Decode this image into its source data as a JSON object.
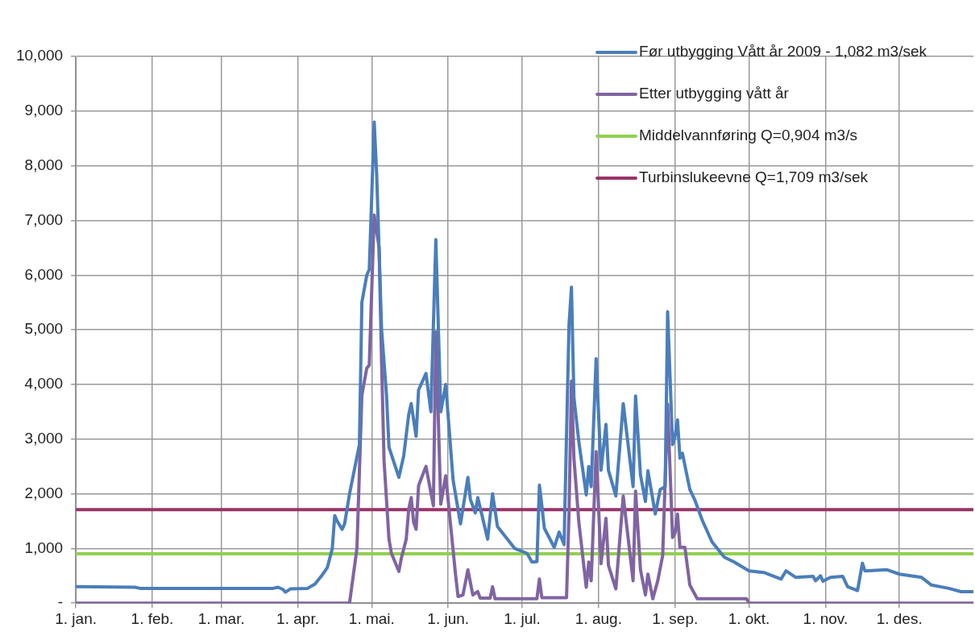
{
  "chart_data": {
    "type": "line",
    "legend": "top right",
    "grid": true,
    "marker": "none",
    "line_style": "solid",
    "xlim": [
      "2009-01-01",
      "2009-12-31"
    ],
    "xticks": [
      {
        "value": "2009-01-01",
        "label": "1. jan."
      },
      {
        "value": "2009-02-01",
        "label": "1. feb."
      },
      {
        "value": "2009-03-01",
        "label": "1. mar."
      },
      {
        "value": "2009-04-01",
        "label": "1. apr."
      },
      {
        "value": "2009-05-01",
        "label": "1. mai."
      },
      {
        "value": "2009-06-01",
        "label": "1. jun."
      },
      {
        "value": "2009-07-01",
        "label": "1. jul."
      },
      {
        "value": "2009-08-01",
        "label": "1. aug."
      },
      {
        "value": "2009-09-01",
        "label": "1. sep."
      },
      {
        "value": "2009-10-01",
        "label": "1. okt."
      },
      {
        "value": "2009-11-01",
        "label": "1. nov."
      },
      {
        "value": "2009-12-01",
        "label": "1. des."
      }
    ],
    "ylim": [
      0,
      10000
    ],
    "yticks": [
      {
        "value": 0,
        "label": "-"
      },
      {
        "value": 1000,
        "label": "1,000"
      },
      {
        "value": 2000,
        "label": "2,000"
      },
      {
        "value": 3000,
        "label": "3,000"
      },
      {
        "value": 4000,
        "label": "4,000"
      },
      {
        "value": 5000,
        "label": "5,000"
      },
      {
        "value": 6000,
        "label": "6,000"
      },
      {
        "value": 7000,
        "label": "7,000"
      },
      {
        "value": 8000,
        "label": "8,000"
      },
      {
        "value": 9000,
        "label": "9,000"
      },
      {
        "value": 10000,
        "label": "10,000"
      }
    ],
    "series": [
      {
        "name": "Før utbygging Vått år 2009 - 1,082 m3/sek",
        "color": "#4a7ebb",
        "x": [
          "2009-01-01",
          "2009-01-25",
          "2009-01-27",
          "2009-03-22",
          "2009-03-24",
          "2009-03-26",
          "2009-03-27",
          "2009-03-29",
          "2009-04-05",
          "2009-04-08",
          "2009-04-11",
          "2009-04-13",
          "2009-04-15",
          "2009-04-16",
          "2009-04-17",
          "2009-04-19",
          "2009-04-20",
          "2009-04-22",
          "2009-04-26",
          "2009-04-27",
          "2009-04-29",
          "2009-04-30",
          "2009-05-02",
          "2009-05-03",
          "2009-05-05",
          "2009-05-07",
          "2009-05-08",
          "2009-05-12",
          "2009-05-14",
          "2009-05-16",
          "2009-05-17",
          "2009-05-19",
          "2009-05-20",
          "2009-05-21",
          "2009-05-23",
          "2009-05-25",
          "2009-05-27",
          "2009-05-29",
          "2009-05-31",
          "2009-06-03",
          "2009-06-06",
          "2009-06-09",
          "2009-06-10",
          "2009-06-12",
          "2009-06-13",
          "2009-06-17",
          "2009-06-19",
          "2009-06-21",
          "2009-06-25",
          "2009-06-28",
          "2009-07-03",
          "2009-07-05",
          "2009-07-07",
          "2009-07-08",
          "2009-07-09",
          "2009-07-10",
          "2009-07-14",
          "2009-07-16",
          "2009-07-18",
          "2009-07-20",
          "2009-07-21",
          "2009-07-22",
          "2009-07-24",
          "2009-07-27",
          "2009-07-28",
          "2009-07-29",
          "2009-07-31",
          "2009-08-02",
          "2009-08-04",
          "2009-08-05",
          "2009-08-08",
          "2009-08-11",
          "2009-08-15",
          "2009-08-16",
          "2009-08-18",
          "2009-08-20",
          "2009-08-21",
          "2009-08-24",
          "2009-08-26",
          "2009-08-28",
          "2009-08-29",
          "2009-08-31",
          "2009-09-01",
          "2009-09-02",
          "2009-09-03",
          "2009-09-04",
          "2009-09-07",
          "2009-09-09",
          "2009-09-12",
          "2009-09-16",
          "2009-09-21",
          "2009-09-25",
          "2009-10-01",
          "2009-10-07",
          "2009-10-14",
          "2009-10-16",
          "2009-10-20",
          "2009-10-27",
          "2009-10-28",
          "2009-10-30",
          "2009-10-31",
          "2009-11-03",
          "2009-11-08",
          "2009-11-10",
          "2009-11-14",
          "2009-11-16",
          "2009-11-17",
          "2009-11-26",
          "2009-12-01",
          "2009-12-10",
          "2009-12-14",
          "2009-12-21",
          "2009-12-26",
          "2009-12-31"
        ],
        "values": [
          300,
          290,
          270,
          270,
          290,
          250,
          200,
          260,
          270,
          350,
          520,
          650,
          1000,
          1600,
          1500,
          1350,
          1450,
          2000,
          2900,
          5500,
          6000,
          6100,
          8800,
          7850,
          5000,
          3800,
          2850,
          2300,
          2700,
          3450,
          3650,
          3050,
          3900,
          4000,
          4200,
          3500,
          6650,
          3500,
          4000,
          2250,
          1450,
          2300,
          1900,
          1650,
          1930,
          1170,
          2000,
          1400,
          1170,
          1000,
          910,
          750,
          760,
          2160,
          1780,
          1370,
          1020,
          1300,
          1070,
          5080,
          5780,
          3760,
          2950,
          1980,
          2500,
          2130,
          4470,
          2430,
          3270,
          2430,
          1960,
          3650,
          2130,
          3790,
          2340,
          1860,
          2420,
          1630,
          2080,
          2130,
          5330,
          2900,
          3050,
          3350,
          2650,
          2740,
          2080,
          1890,
          1520,
          1120,
          840,
          750,
          590,
          560,
          440,
          590,
          470,
          490,
          410,
          500,
          400,
          470,
          490,
          300,
          230,
          730,
          590,
          610,
          530,
          470,
          330,
          270,
          210,
          210
        ]
      },
      {
        "name": "Etter utbygging vått år",
        "color": "#8064a2",
        "x": [
          "2009-01-01",
          "2009-04-22",
          "2009-04-25",
          "2009-04-27",
          "2009-04-29",
          "2009-04-30",
          "2009-05-02",
          "2009-05-04",
          "2009-05-05",
          "2009-05-06",
          "2009-05-08",
          "2009-05-09",
          "2009-05-12",
          "2009-05-13",
          "2009-05-15",
          "2009-05-16",
          "2009-05-17",
          "2009-05-18",
          "2009-05-19",
          "2009-05-20",
          "2009-05-21",
          "2009-05-23",
          "2009-05-26",
          "2009-05-27",
          "2009-05-29",
          "2009-05-31",
          "2009-06-02",
          "2009-06-04",
          "2009-06-05",
          "2009-06-07",
          "2009-06-09",
          "2009-06-11",
          "2009-06-13",
          "2009-06-14",
          "2009-06-18",
          "2009-06-19",
          "2009-06-20",
          "2009-07-07",
          "2009-07-08",
          "2009-07-09",
          "2009-07-19",
          "2009-07-20",
          "2009-07-21",
          "2009-07-22",
          "2009-07-24",
          "2009-07-27",
          "2009-07-28",
          "2009-07-29",
          "2009-07-31",
          "2009-08-02",
          "2009-08-04",
          "2009-08-05",
          "2009-08-08",
          "2009-08-11",
          "2009-08-15",
          "2009-08-16",
          "2009-08-18",
          "2009-08-20",
          "2009-08-21",
          "2009-08-23",
          "2009-08-25",
          "2009-08-27",
          "2009-08-29",
          "2009-08-31",
          "2009-09-01",
          "2009-09-02",
          "2009-09-03",
          "2009-09-05",
          "2009-09-07",
          "2009-09-10",
          "2009-09-30",
          "2009-10-01",
          "2009-12-31"
        ],
        "values": [
          0,
          0,
          1000,
          3800,
          4300,
          4350,
          7100,
          6500,
          4400,
          2600,
          1170,
          910,
          580,
          820,
          1170,
          1720,
          1930,
          1480,
          1350,
          2150,
          2270,
          2500,
          1780,
          4960,
          1810,
          2330,
          1420,
          520,
          120,
          150,
          610,
          150,
          210,
          90,
          90,
          300,
          80,
          80,
          440,
          100,
          100,
          1630,
          4060,
          2650,
          1480,
          290,
          750,
          410,
          2770,
          720,
          1550,
          690,
          260,
          1960,
          410,
          2050,
          610,
          150,
          530,
          80,
          410,
          870,
          3640,
          1200,
          1280,
          1630,
          1020,
          1020,
          330,
          80,
          80,
          0,
          0
        ]
      },
      {
        "name": "Middelvannføring Q=0,904 m3/s",
        "color": "#92d050",
        "x": [
          "2009-01-01",
          "2009-12-31"
        ],
        "values": [
          904,
          904
        ]
      },
      {
        "name": "Turbinslukeevne Q=1,709 m3/sek",
        "color": "#993366",
        "x": [
          "2009-01-01",
          "2009-12-31"
        ],
        "values": [
          1709,
          1709
        ]
      }
    ]
  }
}
